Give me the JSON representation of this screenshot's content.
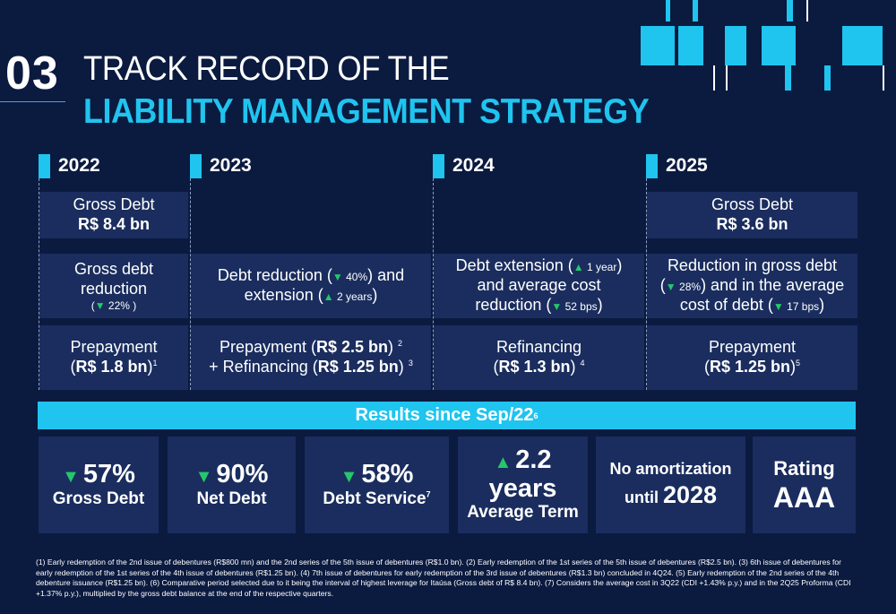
{
  "header": {
    "section_number": "03",
    "title_line1": "TRACK RECORD OF THE",
    "title_line2": "LIABILITY MANAGEMENT STRATEGY"
  },
  "years": [
    "2022",
    "2023",
    "2024",
    "2025"
  ],
  "col2022": {
    "gross_debt_label": "Gross Debt",
    "gross_debt_value": "R$ 8.4 bn",
    "reduction_line1": "Gross debt",
    "reduction_line2": "reduction",
    "reduction_open": "(",
    "reduction_pct": "22%",
    "reduction_close": ")",
    "prepay_label": "Prepayment",
    "prepay_open": "(",
    "prepay_value": "R$ 1.8 bn",
    "prepay_close": ")",
    "prepay_note": "1"
  },
  "col2023": {
    "line1_a": "Debt reduction (",
    "line1_pct": "40%",
    "line1_b": ") and",
    "line2_a": "extension (",
    "line2_val": "2 years",
    "line2_b": ")",
    "prepay_a": "Prepayment (",
    "prepay_value": "R$ 2.5 bn",
    "prepay_b": ")",
    "prepay_note": "2",
    "refi_a": "+ Refinancing (",
    "refi_value": "R$ 1.25 bn",
    "refi_b": ")",
    "refi_note": "3"
  },
  "col2024": {
    "line1_a": "Debt extension (",
    "line1_val": "1 year",
    "line1_b": ")",
    "line2": "and average cost",
    "line3_a": "reduction (",
    "line3_val": "52 bps",
    "line3_b": ")",
    "refi_label": "Refinancing",
    "refi_open": "(",
    "refi_value": "R$ 1.3 bn",
    "refi_close": ")",
    "refi_note": "4"
  },
  "col2025": {
    "gross_debt_label": "Gross Debt",
    "gross_debt_value": "R$ 3.6 bn",
    "line1": "Reduction in gross debt",
    "line2_a": "(",
    "line2_pct": "28%",
    "line2_b": ") and in the average",
    "line3_a": "cost of debt (",
    "line3_val": "17 bps",
    "line3_b": ")",
    "prepay_label": "Prepayment",
    "prepay_open": "(",
    "prepay_value": "R$ 1.25 bn",
    "prepay_close": ")",
    "prepay_note": "5"
  },
  "results": {
    "title": "Results since Sep/22",
    "note": "6",
    "kpis": [
      {
        "value": "57%",
        "label": "Gross Debt",
        "trend": "down"
      },
      {
        "value": "90%",
        "label": "Net Debt",
        "trend": "down"
      },
      {
        "value": "58%",
        "label": "Debt Service",
        "note": "7",
        "trend": "down"
      },
      {
        "value": "2.2 years",
        "label": "Average Term",
        "trend": "up"
      }
    ],
    "no_amort_line1": "No amortization",
    "no_amort_line2_a": "until ",
    "no_amort_year": "2028",
    "rating_label": "Rating",
    "rating_value": "AAA"
  },
  "footnote": "(1) Early redemption of the 2nd issue of debentures (R$800 mn) and the 2nd series of the 5th issue of debentures (R$1.0 bn). (2) Early redemption of the 1st series of the 5th issue of debentures (R$2.5 bn). (3) 6th issue of debentures for early redemption of the 1st series of the 4th issue of debentures (R$1.25 bn). (4) 7th issue of debentures for early redemption of the 3rd issue of debentures (R$1.3 bn) concluded in 4Q24. (5) Early redemption of the 2nd series of the 4th debenture issuance (R$1.25 bn). (6) Comparative period selected due to it being the interval of highest leverage for Itaúsa (Gross debt of R$ 8.4 bn). (7) Considers the average cost in 3Q22 (CDI +1.43% p.y.) and in the 2Q25 Proforma (CDI +1.37% p.y.), multiplied by the gross debt balance at the end of the respective quarters.",
  "icons": {
    "down_arrow": "▼",
    "up_arrow": "▲"
  },
  "colors": {
    "background": "#0b1a3f",
    "panel": "#1a2d5e",
    "accent": "#1fc4ef",
    "positive": "#25c76a"
  }
}
